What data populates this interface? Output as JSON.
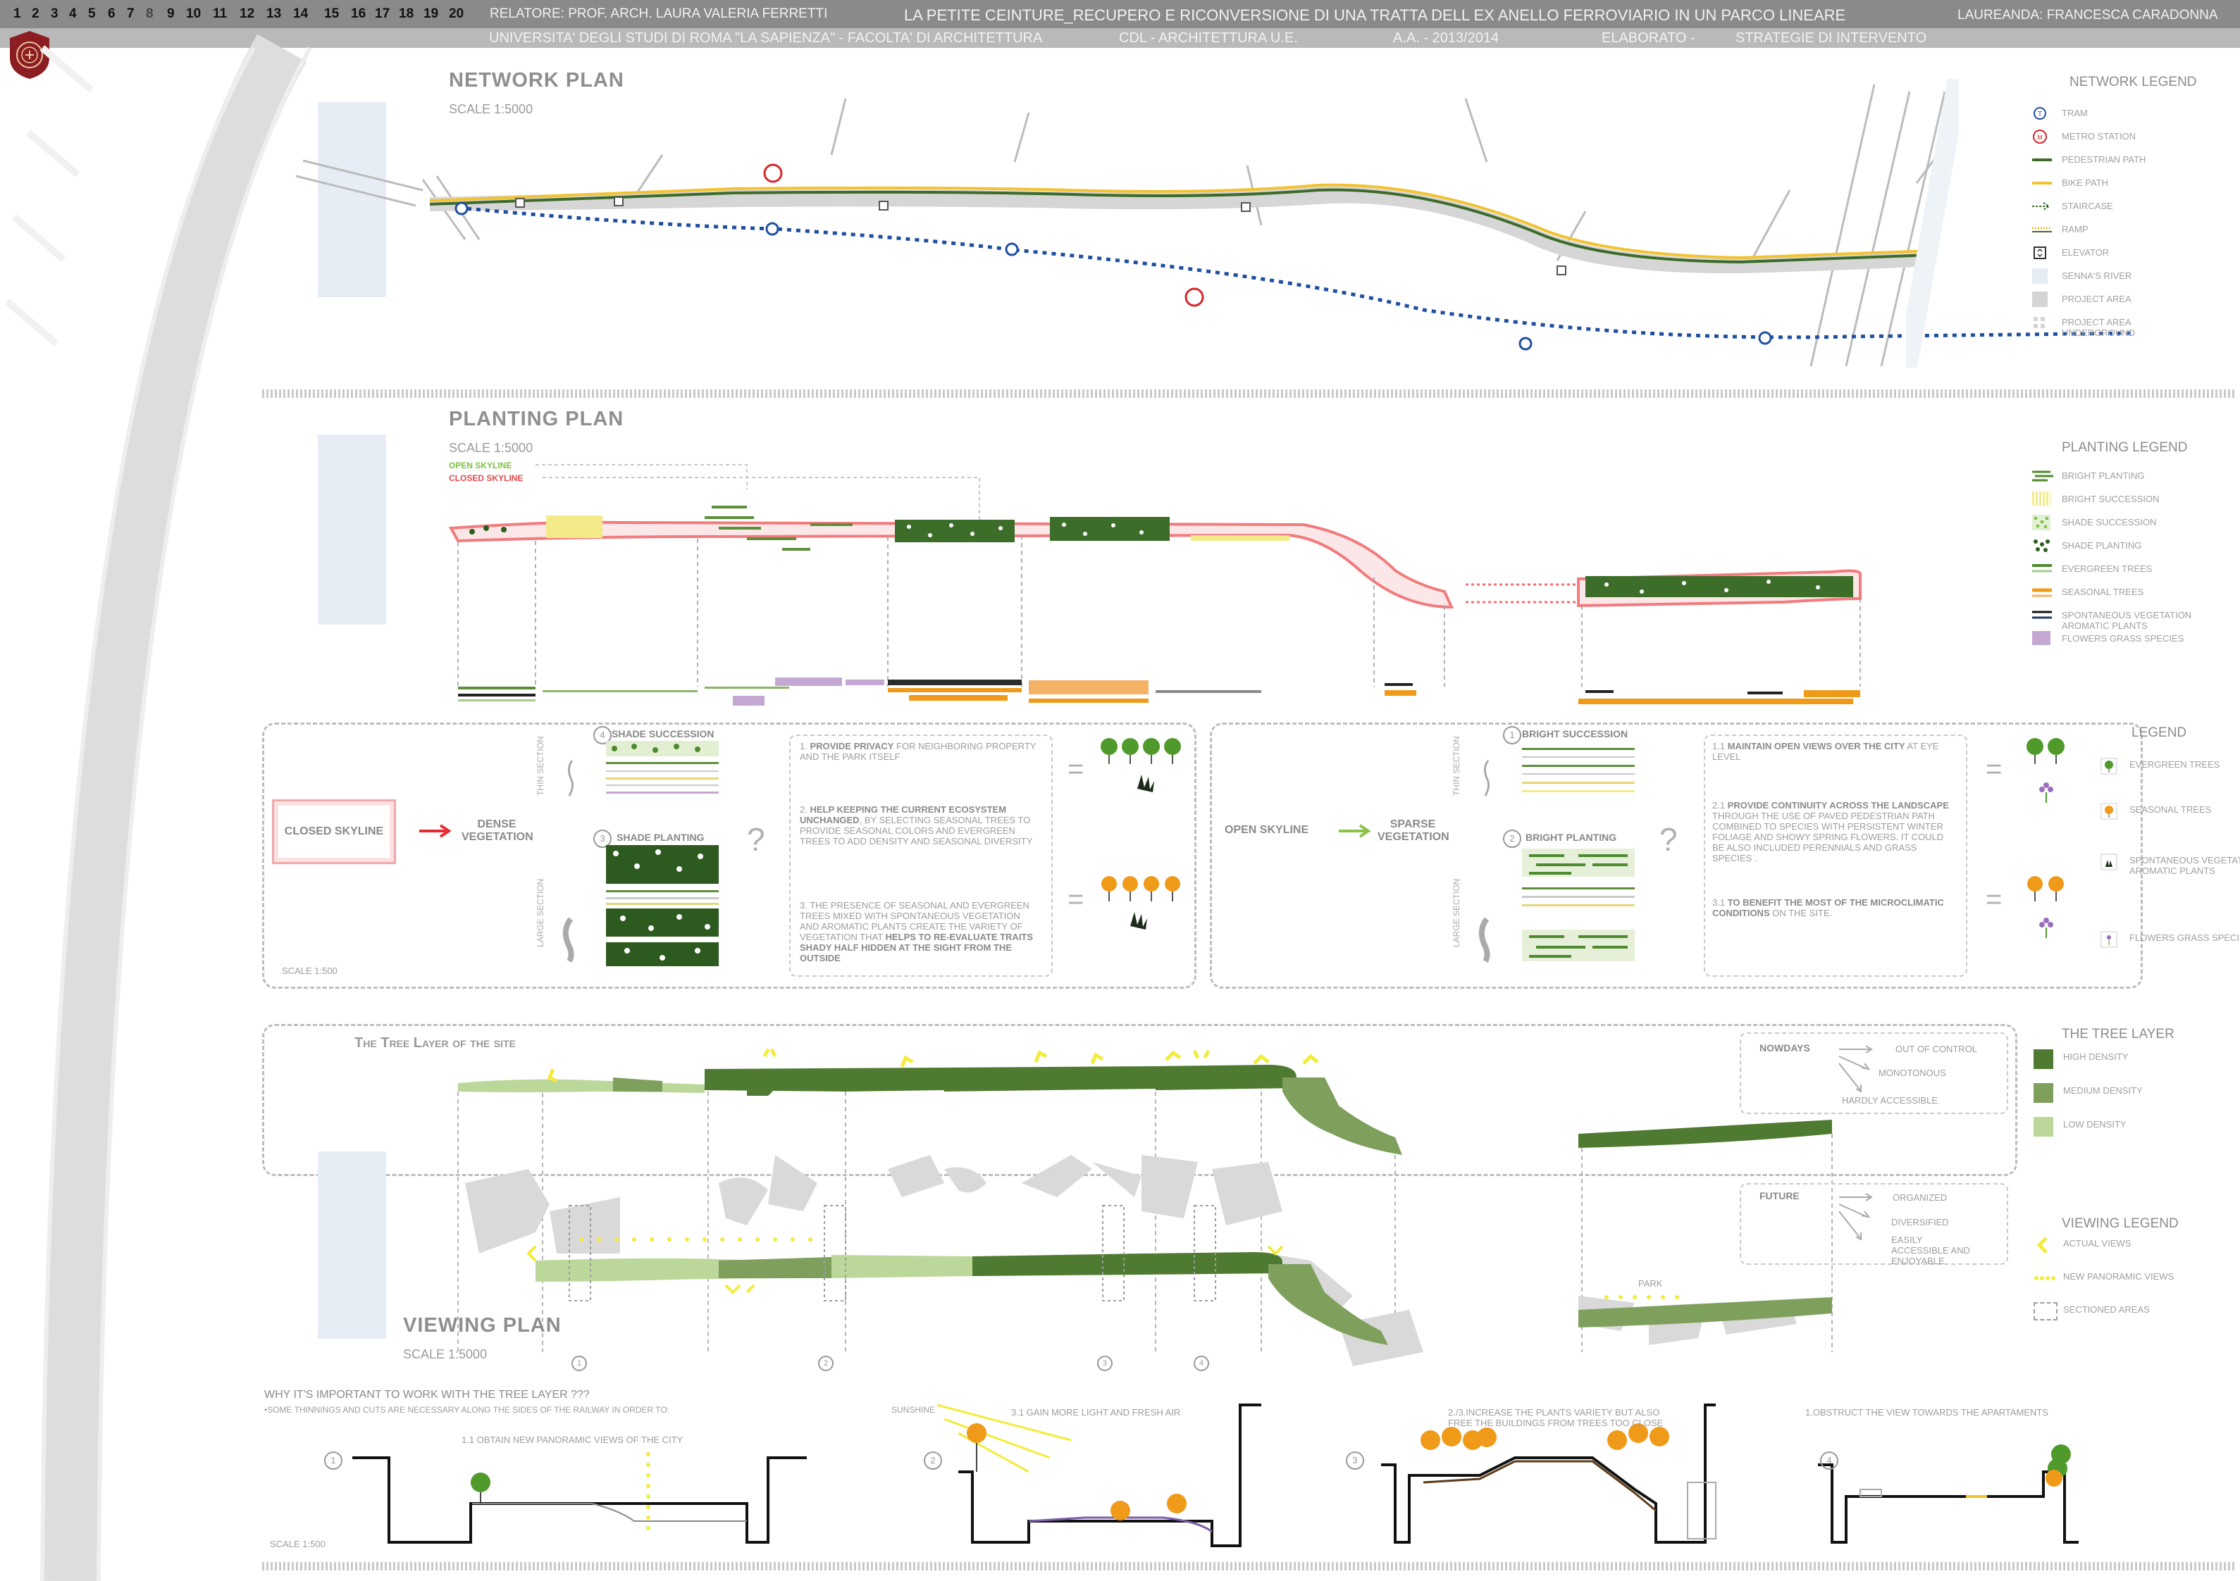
{
  "header": {
    "pages": [
      "1",
      "2",
      "3",
      "4",
      "5",
      "6",
      "7",
      "8",
      "9",
      "10",
      "11",
      "12",
      "13",
      "14",
      "15",
      "16",
      "17",
      "18",
      "19",
      "20"
    ],
    "current_page": "8",
    "relatore": "RELATORE: PROF. ARCH. LAURA VALERIA FERRETTI",
    "title": "LA PETITE CEINTURE_RECUPERO E RICONVERSIONE DI UNA TRATTA DELL EX ANELLO FERROVIARIO IN UN PARCO LINEARE",
    "laureanda": "LAUREANDA: FRANCESCA CARADONNA",
    "university": "UNIVERSITA' DEGLI STUDI DI ROMA \"LA SAPIENZA\"  -   FACOLTA' DI ARCHITETTURA",
    "course": "CDL - ARCHITETTURA U.E.",
    "year": "A.A. -  2013/2014",
    "elaborato": "ELABORATO       -",
    "strategy": "STRATEGIE DI INTERVENTO"
  },
  "network": {
    "title": "NETWORK PLAN",
    "scale": "SCALE  1:5000",
    "legend_title": "NETWORK LEGEND",
    "legend": [
      "TRAM",
      "METRO STATION",
      "PEDESTRIAN PATH",
      "BIKE PATH",
      "STAIRCASE",
      "RAMP",
      "ELEVATOR",
      "SENNA'S RIVER",
      "PROJECT AREA",
      "PROJECT AREA UNDERGROUND"
    ],
    "tram_symbol": "T",
    "metro_symbol": "M",
    "colors": {
      "tram": "#1f4fa0",
      "metro": "#d6252b",
      "pedestrian": "#3d6b2a",
      "bike": "#f2c230",
      "area": "#d4d4d4",
      "river": "#e5ecf4"
    }
  },
  "planting": {
    "title": "PLANTING PLAN",
    "scale": "SCALE  1:5000",
    "open_skyline": "OPEN SKYLINE",
    "closed_skyline": "CLOSED SKYLINE",
    "legend_title": "PLANTING LEGEND",
    "legend": [
      "BRIGHT PLANTING",
      "BRIGHT SUCCESSION",
      "SHADE SUCCESSION",
      "SHADE PLANTING",
      "EVERGREEN TREES",
      "SEASONAL TREES",
      "SPONTANEOUS  VEGETATION AROMATIC PLANTS",
      "FLOWERS GRASS SPECIES"
    ]
  },
  "strategy": {
    "closed_box": "CLOSED SKYLINE",
    "dense": "DENSE VEGETATION",
    "thin_section": "THIN SECTION",
    "large_section": "LARGE SECTION",
    "shade_succession_num": "4",
    "shade_succession": "SHADE SUCCESSION",
    "shade_planting_num": "3",
    "shade_planting": "SHADE PLANTING",
    "scale": "SCALE  1:500",
    "closed_points": [
      {
        "bold": "PROVIDE PRIVACY",
        "text": " FOR NEIGHBORING PROPERTY AND THE PARK ITSELF",
        "num": "1."
      },
      {
        "bold": "HELP KEEPING THE CURRENT ECOSYSTEM UNCHANGED",
        "text": ", BY SELECTING SEASONAL TREES TO PROVIDE SEASONAL COLORS AND EVERGREEN TREES TO ADD DENSITY AND SEASONAL DIVERSITY",
        "num": "2."
      },
      {
        "bold": "",
        "text": "THE PRESENCE OF SEASONAL AND EVERGREEN TREES MIXED WITH SPONTANEOUS VEGETATION AND AROMATIC PLANTS CREATE THE VARIETY OF VEGETATION THAT ",
        "bold2": "HELPS TO RE-EVALUATE TRAITS SHADY HALF HIDDEN AT THE SIGHT FROM THE OUTSIDE",
        "num": "3."
      }
    ],
    "open_label": "OPEN SKYLINE",
    "sparse": "SPARSE VEGETATION",
    "bright_succession_num": "1",
    "bright_succession": "BRIGHT SUCCESSION",
    "bright_planting_num": "2",
    "bright_planting": "BRIGHT PLANTING",
    "open_points": [
      {
        "num": "1.1",
        "bold": "MAINTAIN OPEN VIEWS OVER THE CITY",
        "text": " AT EYE LEVEL"
      },
      {
        "num": "2.1",
        "bold": "PROVIDE CONTINUITY ACROSS THE LANDSCAPE",
        "text": " THROUGH THE USE OF PAVED PEDESTRIAN PATH COMBINED TO SPECIES WITH PERSISTENT WINTER FOLIAGE AND SHOWY SPRING FLOWERS. IT COULD BE ALSO INCLUDED PERENNIALS AND GRASS SPECIES ."
      },
      {
        "num": "3.1",
        "bold": "TO BENEFIT THE MOST OF THE MICROCLIMATIC CONDITIONS",
        "text": " ON THE SITE."
      }
    ],
    "question": "?",
    "equals": "=",
    "legend_title": "LEGEND",
    "legend": [
      "EVERGREEN TREES",
      "SEASONAL TREES",
      "SPONTANEOUS VEGETATION AROMATIC PLANTS",
      "FLOWERS GRASS SPECIES"
    ]
  },
  "tree_layer": {
    "title": "The Tree Layer of the site",
    "nowdays": "NOWDAYS",
    "nowdays_items": [
      "OUT OF CONTROL",
      "MONOTONOUS",
      "HARDLY ACCESSIBLE"
    ],
    "future": "FUTURE",
    "future_items": [
      "ORGANIZED",
      "DIVERSIFIED",
      "EASILY ACCESSIBLE AND ENJOYABLE"
    ],
    "legend_title": "THE TREE LAYER",
    "legend": [
      "HIGH DENSITY",
      "MEDIUM DENSITY",
      "LOW DENSITY"
    ],
    "colors": {
      "high": "#4f7a31",
      "medium": "#7fa05d",
      "low": "#bcd79a"
    }
  },
  "viewing": {
    "title": "VIEWING PLAN",
    "scale": "SCALE  1:5000",
    "park": "PARK",
    "legend_title": "VIEWING LEGEND",
    "legend": [
      "ACTUAL VIEWS",
      "NEW PANORAMIC VIEWS",
      "SECTIONED AREAS"
    ],
    "section_numbers": [
      "1",
      "2",
      "3",
      "4"
    ]
  },
  "sections": {
    "question": "WHY IT'S IMPORTANT TO WORK WITH THE TREE LAYER ???",
    "subtitle": "•SOME THINNINGS AND CUTS ARE NECESSARY ALONG THE SIDES OF THE RAILWAY IN ORDER TO:",
    "s1_num": "1",
    "s1": "1.1 OBTAIN NEW PANORAMIC VIEWS OF THE CITY",
    "s2_num": "2",
    "s2_sun": "SUNSHINE",
    "s2": "3.1 GAIN MORE LIGHT AND FRESH AIR",
    "s3_num": "3",
    "s3": "2./3.INCREASE THE PLANTS VARIETY BUT ALSO FREE THE BUILDINGS FROM TREES TOO CLOSE",
    "s4_num": "4",
    "s4": "1.OBSTRUCT THE VIEW TOWARDS THE APARTAMENTS",
    "scale": "SCALE  1:500"
  }
}
